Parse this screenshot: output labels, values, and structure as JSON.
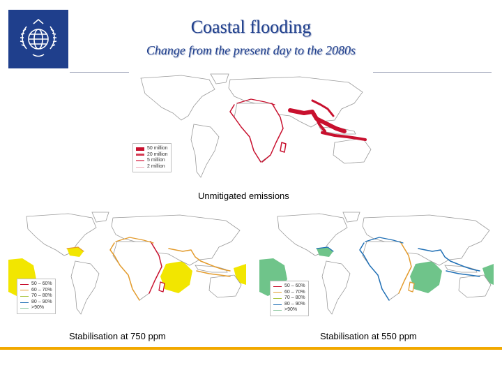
{
  "title": "Coastal flooding",
  "subtitle": "Change from the present day to the 2080s",
  "colors": {
    "brand_blue": "#1f3f8c",
    "unmitigated": "#d0103a",
    "stabilisation_750": "#f2e600",
    "stabilisation_550": "#6fc48a",
    "accent_bar": "#f2a900"
  },
  "maps": {
    "unmitigated": {
      "caption": "Unmitigated emissions",
      "legend": [
        "50 million",
        "20 million",
        "5 million",
        "2 million"
      ]
    },
    "stab750": {
      "caption": "Stabilisation at 750 ppm",
      "legend": [
        "50 – 60%",
        "60 – 70%",
        "70 – 80%",
        "80 – 90%",
        ">90%"
      ]
    },
    "stab550": {
      "caption": "Stabilisation at 550 ppm",
      "legend": [
        "50 – 60%",
        "60 – 70%",
        "70 – 80%",
        "80 – 90%",
        ">90%"
      ]
    }
  },
  "legend_colors": {
    "magnitude": [
      "#c8102e",
      "#d43a52",
      "#e57388",
      "#f0a6b4"
    ],
    "percent": [
      "#c8102e",
      "#e39b2c",
      "#a8c23a",
      "#1f6fb5",
      "#8cc9a0"
    ]
  }
}
